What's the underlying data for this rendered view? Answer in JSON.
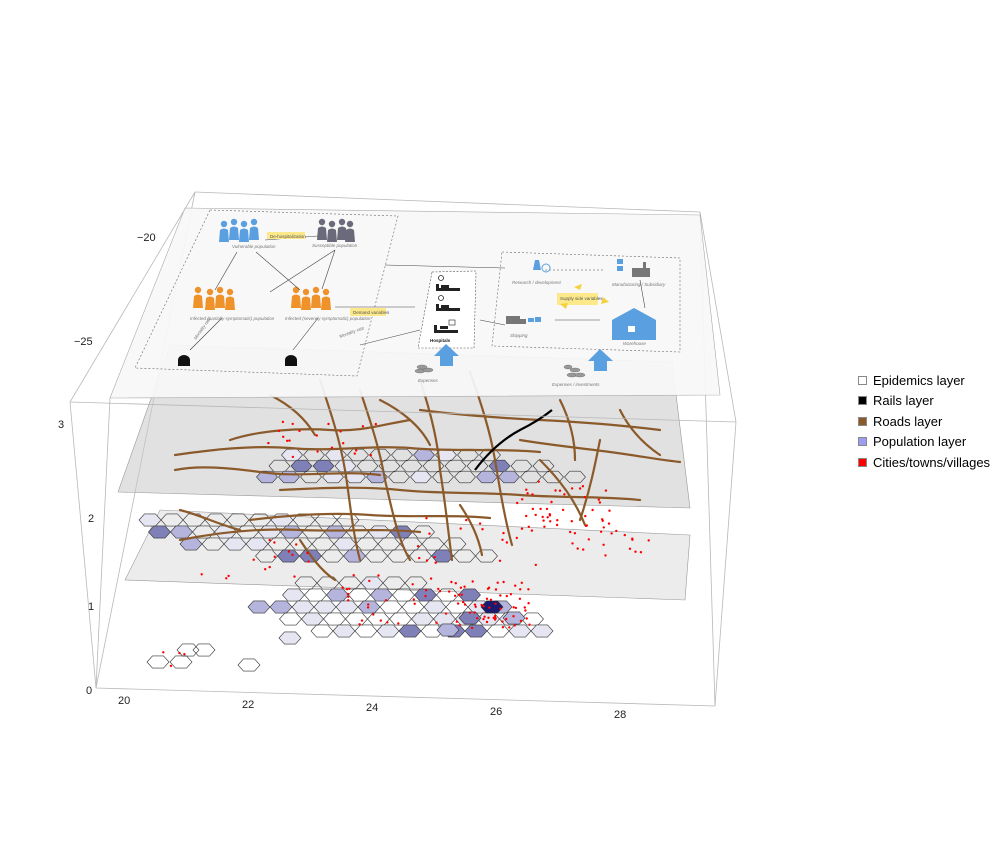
{
  "legend": [
    {
      "label": "Epidemics layer",
      "color": "#ffffff"
    },
    {
      "label": "Rails layer",
      "color": "#000000"
    },
    {
      "label": "Roads layer",
      "color": "#8B5A2B"
    },
    {
      "label": "Population layer",
      "color": "#9c9cf0"
    },
    {
      "label": "Cities/towns/villages",
      "color": "#ff0000"
    }
  ],
  "axes": {
    "x_ticks": [
      "20",
      "22",
      "24",
      "26",
      "28"
    ],
    "y_ticks": [
      "−20",
      "−25"
    ],
    "z_ticks": [
      "0",
      "1",
      "2",
      "3"
    ]
  },
  "diagram": {
    "populations": [
      "Vulnerable population",
      "Susceptible population",
      "Infected (partially symptomatic) population",
      "Infected (severely symptomatic) population"
    ],
    "badges": [
      "De-hospitalization",
      "Demand variables",
      "Supply side variables"
    ],
    "hospitals_label": "Hospitals",
    "research_label": "Research / development",
    "manufacturing_label": "Manufacturing / Subsidiary",
    "shipping_label": "Shipping",
    "warehouse_label": "Warehouse",
    "expenses_label": "Expenses",
    "expenses_investments_label": "Expenses / investments",
    "mortality_label": "Mortality rate"
  },
  "colors": {
    "road": "#8B5A2B",
    "rail": "#000000",
    "city": "#ff0000",
    "hex_outline": "#333333",
    "pop_light": "#e6e6f3",
    "pop_mid": "#b4b4dc",
    "pop_dark": "#8080b8",
    "pop_darkest": "#1a1a6e",
    "people_blue": "#5aa0e0",
    "people_orange": "#f0922a",
    "highlight": "#fde98a"
  }
}
